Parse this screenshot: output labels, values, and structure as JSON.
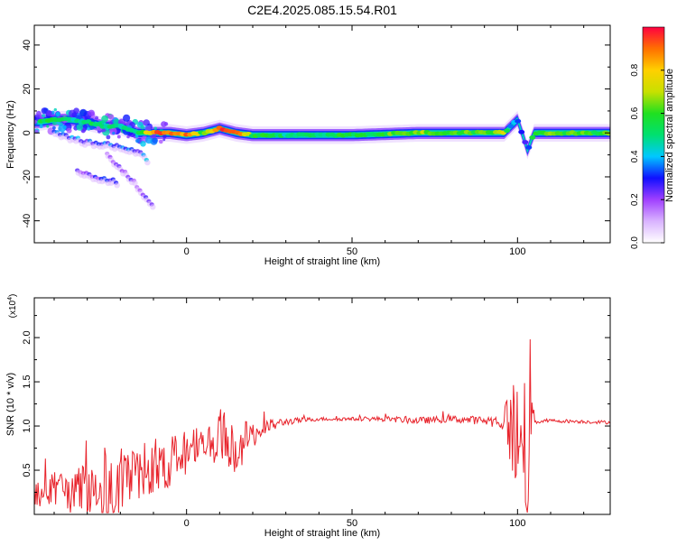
{
  "title": "C2E4.2025.085.15.54.R01",
  "chart_data": [
    {
      "type": "heatmap",
      "xlabel": "Height of straight line (km)",
      "ylabel": "Frequency (Hz)",
      "xlim": [
        -46,
        128
      ],
      "ylim": [
        -50,
        49
      ],
      "xticks": [
        0,
        50,
        100
      ],
      "yticks": [
        -40,
        -20,
        0,
        20,
        40
      ],
      "colorbar": {
        "label": "Normalized spectral amplitude",
        "range": [
          0,
          1
        ],
        "ticks": [
          0.0,
          0.2,
          0.4,
          0.6,
          0.8
        ],
        "colors": [
          "#ffffff",
          "#d9b3ff",
          "#a040ff",
          "#1010ff",
          "#00c8ff",
          "#00e070",
          "#20e020",
          "#c8e000",
          "#ffd000",
          "#ff7000",
          "#ff0040"
        ]
      },
      "traces": [
        {
          "x": [
            -44,
            -40,
            -35,
            -30,
            -25,
            -20,
            -15,
            -10,
            -5,
            0,
            5,
            10,
            15,
            20,
            30,
            50,
            70,
            90,
            96,
            98,
            100,
            102,
            103,
            105,
            128
          ],
          "y": [
            5,
            6,
            6,
            5,
            3,
            3,
            0,
            0,
            0,
            -1,
            0,
            2,
            0,
            -1,
            -1,
            -1,
            0,
            0,
            0,
            3,
            6,
            -3,
            -8,
            0,
            0
          ],
          "amplitude": [
            0.5,
            0.55,
            0.5,
            0.5,
            0.5,
            0.45,
            0.45,
            0.9,
            0.85,
            0.9,
            0.6,
            0.9,
            0.95,
            0.55,
            0.5,
            0.55,
            0.65,
            0.6,
            0.7,
            0.35,
            0.35,
            0.3,
            0.35,
            0.6,
            0.6
          ]
        },
        {
          "x": [
            -40,
            -35,
            -30,
            -25,
            -20,
            -15,
            -12
          ],
          "y": [
            0,
            -2,
            -4,
            -5,
            -6,
            -8,
            -12
          ],
          "amplitude": [
            0.3,
            0.35,
            0.3,
            0.3,
            0.3,
            0.3,
            0.35
          ]
        },
        {
          "x": [
            -33,
            -30,
            -27,
            -24,
            -21
          ],
          "y": [
            -17,
            -19,
            -20,
            -21,
            -22
          ],
          "amplitude": [
            0.2,
            0.2,
            0.25,
            0.3,
            0.35
          ]
        },
        {
          "x": [
            -24,
            -20,
            -16,
            -13,
            -10
          ],
          "y": [
            -10,
            -16,
            -22,
            -28,
            -33
          ],
          "amplitude": [
            0.2,
            0.2,
            0.2,
            0.2,
            0.2
          ]
        }
      ]
    },
    {
      "type": "line",
      "xlabel": "Height of straight line (km)",
      "ylabel": "SNR (10 * v/v)",
      "scale_label": "(x10",
      "scale_exponent": "4",
      "xlim": [
        -46,
        128
      ],
      "ylim": [
        0,
        2.45
      ],
      "xticks": [
        0,
        50,
        100
      ],
      "yticks": [
        0.5,
        1.0,
        1.5,
        2.0
      ],
      "ytick_labels": [
        "0.5",
        "1.0",
        "1.5",
        "2.0"
      ],
      "color": "#e8242c",
      "series": [
        {
          "x": [
            -46,
            -40,
            -35,
            -30,
            -25,
            -20,
            -15,
            -10,
            -5,
            0,
            5,
            10,
            15,
            20,
            25,
            30,
            40,
            50,
            60,
            70,
            80,
            90,
            95,
            98,
            100,
            101,
            102,
            103,
            104,
            105,
            110,
            120,
            128
          ],
          "y": [
            0.2,
            0.3,
            0.25,
            0.3,
            0.2,
            0.35,
            0.45,
            0.55,
            0.6,
            0.7,
            0.8,
            0.9,
            0.75,
            0.9,
            1.0,
            1.05,
            1.08,
            1.08,
            1.08,
            1.06,
            1.08,
            1.06,
            1.05,
            1.0,
            0.9,
            0.5,
            1.1,
            0.3,
            1.5,
            1.05,
            1.06,
            1.05,
            1.04
          ],
          "jitter": [
            0.15,
            0.2,
            0.25,
            0.3,
            0.3,
            0.4,
            0.35,
            0.3,
            0.3,
            0.25,
            0.25,
            0.3,
            0.3,
            0.15,
            0.08,
            0.04,
            0.02,
            0.02,
            0.03,
            0.04,
            0.04,
            0.05,
            0.08,
            0.5,
            0.7,
            0.9,
            0.7,
            0.8,
            0.9,
            0.03,
            0.02,
            0.02,
            0.02
          ]
        }
      ]
    }
  ]
}
